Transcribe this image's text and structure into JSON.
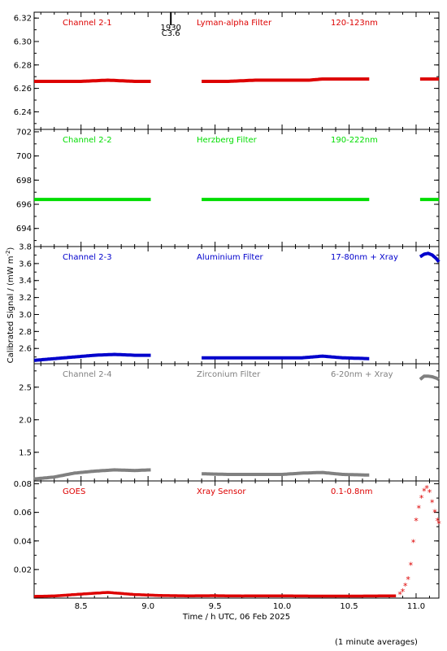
{
  "chart_data": {
    "type": "scatter",
    "xlabel": "Time / h UTC, 06 Feb 2025",
    "ylabel": "Calibrated Signal / (mW m",
    "ylabel_exponent": "-2",
    "ylabel_close": ")",
    "footnote": "(1 minute averages)",
    "xlim": [
      8.15,
      11.17
    ],
    "x_ticks": [
      8.5,
      9.0,
      9.5,
      10.0,
      10.5,
      11.0
    ],
    "x_tick_labels": [
      "8.5",
      "9.0",
      "9.5",
      "10.0",
      "10.5",
      "11.0"
    ],
    "flare_marker": {
      "x": 9.17,
      "time": "1930",
      "class": "C3.6"
    },
    "panels": [
      {
        "channel": "Channel 2-1",
        "filter": "Lyman-alpha Filter",
        "band": "120-123nm",
        "color": "#dd0000",
        "marker": "dot",
        "ylim": [
          6.225,
          6.325
        ],
        "y_ticks": [
          6.24,
          6.26,
          6.28,
          6.3,
          6.32
        ],
        "y_tick_labels": [
          "6.24",
          "6.26",
          "6.28",
          "6.30",
          "6.32"
        ],
        "series": [
          {
            "x": [
              8.15,
              8.3,
              8.5,
              8.7,
              8.9,
              9.02
            ],
            "y": [
              6.266,
              6.266,
              6.266,
              6.267,
              6.266,
              6.266
            ]
          },
          {
            "x": [
              9.4,
              9.6,
              9.8,
              10.0,
              10.2,
              10.3,
              10.4,
              10.5,
              10.65
            ],
            "y": [
              6.266,
              6.266,
              6.267,
              6.267,
              6.267,
              6.268,
              6.268,
              6.268,
              6.268
            ]
          },
          {
            "x": [
              11.03,
              11.1,
              11.17
            ],
            "y": [
              6.268,
              6.268,
              6.268
            ]
          }
        ]
      },
      {
        "channel": "Channel 2-2",
        "filter": "Herzberg Filter",
        "band": "190-222nm",
        "color": "#00dd00",
        "marker": "dot",
        "ylim": [
          692.5,
          702.2
        ],
        "y_ticks": [
          694,
          696,
          698,
          700,
          702
        ],
        "y_tick_labels": [
          "694",
          "696",
          "698",
          "700",
          "702"
        ],
        "series": [
          {
            "x": [
              8.15,
              8.5,
              8.8,
              9.02
            ],
            "y": [
              696.4,
              696.4,
              696.4,
              696.4
            ]
          },
          {
            "x": [
              9.4,
              9.8,
              10.2,
              10.65
            ],
            "y": [
              696.4,
              696.4,
              696.4,
              696.4
            ]
          },
          {
            "x": [
              11.03,
              11.17
            ],
            "y": [
              696.4,
              696.4
            ]
          }
        ]
      },
      {
        "channel": "Channel 2-3",
        "filter": "Aluminium Filter",
        "band": "17-80nm + Xray",
        "color": "#0000cc",
        "marker": "dot",
        "ylim": [
          2.42,
          3.8
        ],
        "y_ticks": [
          2.6,
          2.8,
          3.0,
          3.2,
          3.4,
          3.6,
          3.8
        ],
        "y_tick_labels": [
          "2.6",
          "2.8",
          "3.0",
          "3.2",
          "3.4",
          "3.6",
          "3.8"
        ],
        "series": [
          {
            "x": [
              8.15,
              8.3,
              8.45,
              8.6,
              8.75,
              8.9,
              9.02
            ],
            "y": [
              2.46,
              2.48,
              2.5,
              2.52,
              2.53,
              2.52,
              2.52
            ]
          },
          {
            "x": [
              9.4,
              9.6,
              9.8,
              10.0,
              10.15,
              10.3,
              10.45,
              10.65
            ],
            "y": [
              2.49,
              2.49,
              2.49,
              2.49,
              2.49,
              2.51,
              2.49,
              2.48
            ]
          },
          {
            "x": [
              11.03,
              11.06,
              11.09,
              11.12,
              11.15,
              11.17
            ],
            "y": [
              3.68,
              3.71,
              3.72,
              3.7,
              3.66,
              3.62
            ]
          }
        ]
      },
      {
        "channel": "Channel 2-4",
        "filter": "Zirconium Filter",
        "band": "6-20nm + Xray",
        "color": "#808080",
        "marker": "dot",
        "ylim": [
          1.06,
          2.86
        ],
        "y_ticks": [
          1.5,
          2.0,
          2.5
        ],
        "y_tick_labels": [
          "1.5",
          "2.0",
          "2.5"
        ],
        "series": [
          {
            "x": [
              8.15,
              8.3,
              8.45,
              8.6,
              8.75,
              8.9,
              9.02
            ],
            "y": [
              1.09,
              1.12,
              1.18,
              1.21,
              1.23,
              1.22,
              1.23
            ]
          },
          {
            "x": [
              9.4,
              9.6,
              9.8,
              10.0,
              10.15,
              10.3,
              10.45,
              10.65
            ],
            "y": [
              1.17,
              1.16,
              1.16,
              1.16,
              1.18,
              1.19,
              1.16,
              1.15
            ]
          },
          {
            "x": [
              11.03,
              11.06,
              11.09,
              11.12,
              11.15,
              11.17
            ],
            "y": [
              2.62,
              2.67,
              2.67,
              2.66,
              2.64,
              2.62
            ]
          }
        ]
      },
      {
        "channel": "GOES",
        "filter": "Xray Sensor",
        "band": "0.1-0.8nm",
        "color": "#dd0000",
        "marker": "star",
        "ylim": [
          0.0,
          0.082
        ],
        "y_ticks": [
          0.02,
          0.04,
          0.06,
          0.08
        ],
        "y_tick_labels": [
          "0.02",
          "0.04",
          "0.06",
          "0.08"
        ],
        "series": [
          {
            "x": [
              8.15,
              8.3,
              8.5,
              8.7,
              8.9,
              9.1,
              9.3,
              9.5,
              9.7,
              9.9,
              10.1,
              10.3,
              10.5,
              10.7,
              10.85
            ],
            "y": [
              0.0012,
              0.0015,
              0.0028,
              0.004,
              0.0025,
              0.0018,
              0.0016,
              0.0017,
              0.0015,
              0.0016,
              0.0015,
              0.0014,
              0.0014,
              0.0015,
              0.0016
            ]
          }
        ],
        "points": [
          {
            "x": [
              10.88,
              10.9,
              10.92,
              10.94,
              10.96,
              10.98,
              11.0,
              11.02,
              11.04,
              11.06,
              11.08,
              11.1,
              11.12,
              11.14,
              11.16,
              11.17
            ],
            "y": [
              0.0025,
              0.0045,
              0.0085,
              0.013,
              0.023,
              0.039,
              0.054,
              0.063,
              0.07,
              0.075,
              0.077,
              0.074,
              0.067,
              0.06,
              0.054,
              0.052
            ]
          }
        ]
      }
    ]
  }
}
